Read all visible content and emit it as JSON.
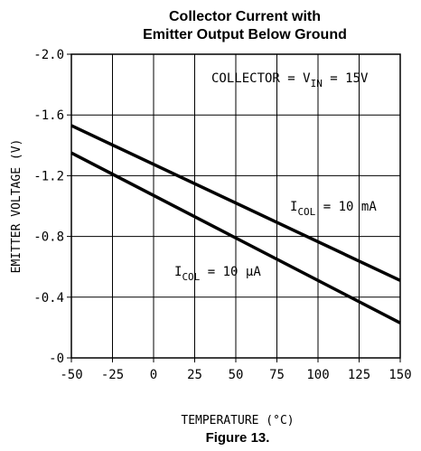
{
  "chart_data": {
    "type": "line",
    "title_lines": [
      "Collector Current with",
      "Emitter Output Below Ground"
    ],
    "xlabel": "TEMPERATURE (°C)",
    "ylabel": "EMITTER VOLTAGE (V)",
    "xlim": [
      -50,
      150
    ],
    "ylim": [
      0,
      -2.0
    ],
    "x_ticks": [
      -50,
      -25,
      0,
      25,
      50,
      75,
      100,
      125,
      150
    ],
    "x_tick_labels": [
      "-50",
      "-25",
      "0",
      "25",
      "50",
      "75",
      "100",
      "125",
      "150"
    ],
    "y_ticks": [
      -2.0,
      -1.6,
      -1.2,
      -0.8,
      -0.4,
      0
    ],
    "y_tick_labels": [
      "-2.0",
      "-1.6",
      "-1.2",
      "-0.8",
      "-0.4",
      "-0"
    ],
    "grid": true,
    "series": [
      {
        "name": "I_COL = 10 mA",
        "x": [
          -50,
          150
        ],
        "y": [
          -1.53,
          -0.51
        ]
      },
      {
        "name": "I_COL = 10 µA",
        "x": [
          -50,
          150
        ],
        "y": [
          -1.35,
          -0.23
        ]
      }
    ],
    "annotations": {
      "condition": {
        "main": "COLLECTOR = V",
        "sub": "IN",
        "tail": " = 15V"
      },
      "label_10mA": {
        "main": "I",
        "sub": "COL",
        "tail": " = 10 mA"
      },
      "label_10uA": {
        "main": "I",
        "sub": "COL",
        "tail": " = 10 µA"
      }
    }
  },
  "caption": "Figure 13."
}
